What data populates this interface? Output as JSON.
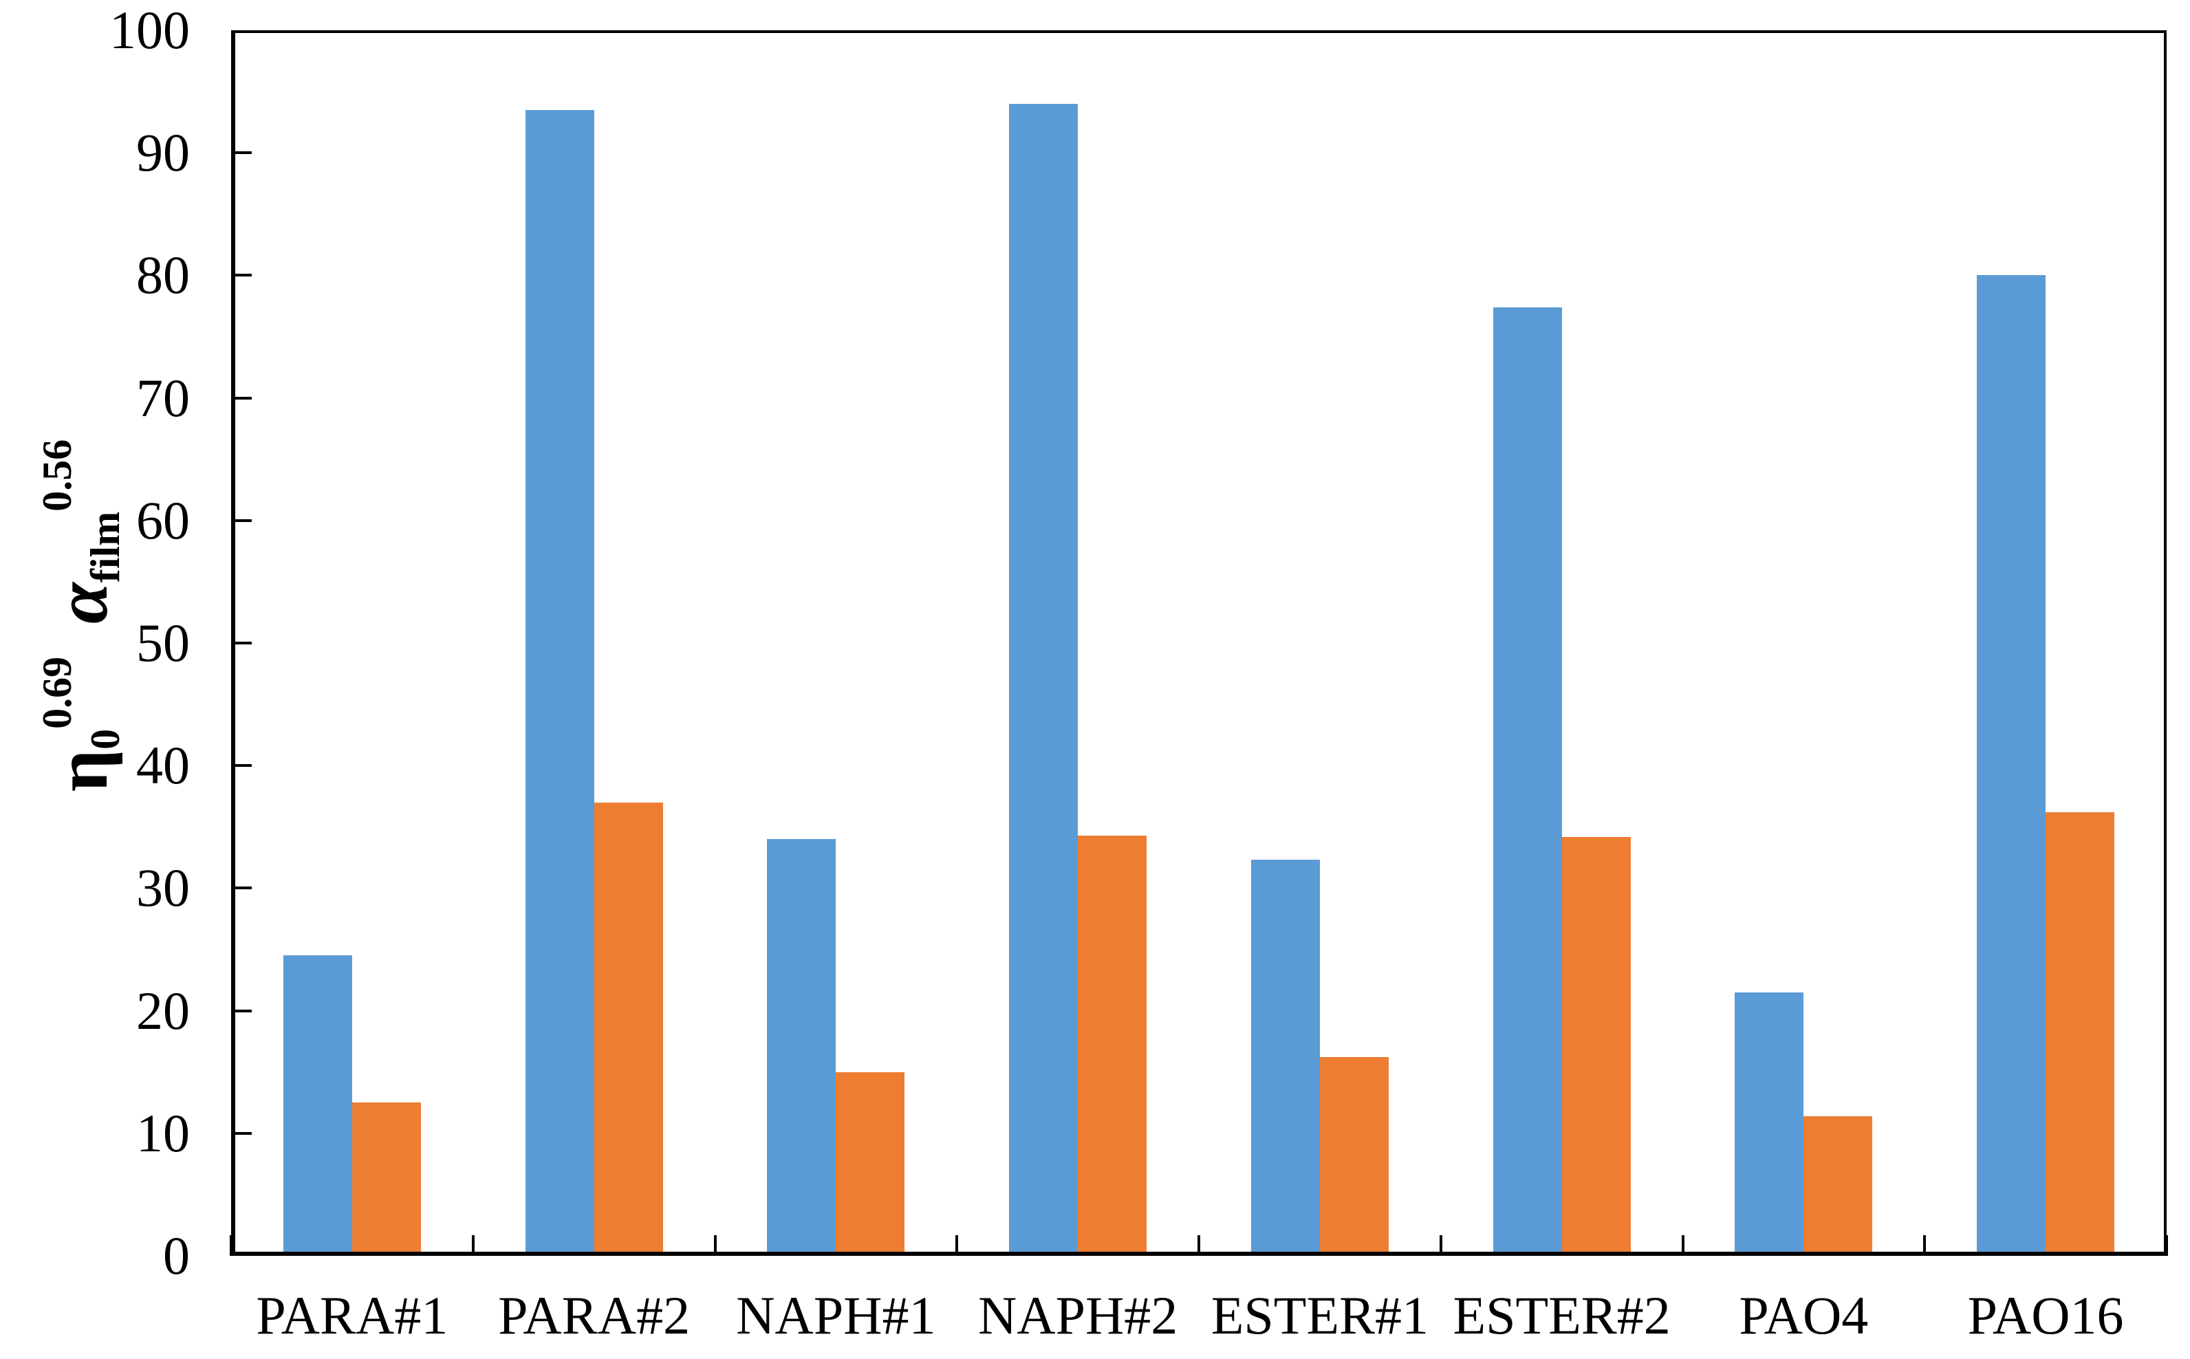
{
  "chart_data": {
    "type": "bar",
    "title": "",
    "categories": [
      "PARA#1",
      "PARA#2",
      "NAPH#1",
      "NAPH#2",
      "ESTER#1",
      "ESTER#2",
      "PAO4",
      "PAO16"
    ],
    "series": [
      {
        "name": "blue",
        "color": "#5B9BD5",
        "values": [
          24.5,
          93.5,
          34.0,
          94.0,
          32.3,
          77.4,
          21.5,
          80.0
        ]
      },
      {
        "name": "orange",
        "color": "#ED7D31",
        "values": [
          12.5,
          37.0,
          15.0,
          34.3,
          16.2,
          34.2,
          11.4,
          36.2
        ]
      }
    ],
    "xlabel": "",
    "ylabel": "η0^0.69 αfilm^0.56",
    "ylabel_parts": {
      "eta_base": "η",
      "eta_sub": "0",
      "eta_sup": "0.69",
      "alpha_base": "α",
      "alpha_sub": "film",
      "alpha_sup": "0.56"
    },
    "ylim": [
      0,
      100
    ],
    "ytick_step": 10,
    "ytick_labels": [
      "0",
      "10",
      "20",
      "30",
      "40",
      "50",
      "60",
      "70",
      "80",
      "90",
      "100"
    ],
    "grid": false,
    "legend": false,
    "axis_color": "#000000",
    "tick_direction": "inside"
  }
}
